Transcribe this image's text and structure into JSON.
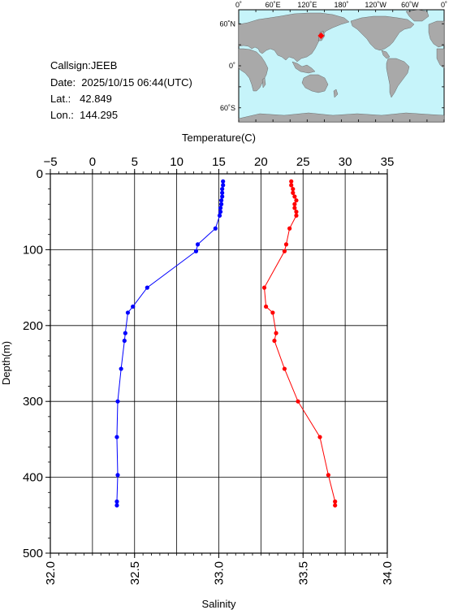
{
  "info": {
    "callsign": "Callsign:JEEB",
    "date": "Date:  2025/10/15 06:44(UTC)",
    "lat": "Lat.:   42.849",
    "lon": "Lon.:  144.295"
  },
  "map": {
    "lon_ticks": [
      "0˚",
      "60˚E",
      "120˚E",
      "180˚",
      "120˚W",
      "60˚W",
      "0˚"
    ],
    "lat_ticks": [
      "60˚N",
      "0˚",
      "60˚S"
    ],
    "station": {
      "lat": 42.849,
      "lon": 144.295,
      "color": "#ff0000"
    },
    "ocean_color": "#c6f4fa",
    "land_color": "#a9a9a9"
  },
  "chart_data": {
    "type": "line",
    "ylabel": "Depth(m)",
    "ylim": [
      0,
      500
    ],
    "y_ticks": [
      "0",
      "100",
      "200",
      "300",
      "400",
      "500"
    ],
    "y_reversed": true,
    "grid": true,
    "temperature_axis": {
      "label": "Temperature(C)",
      "range": [
        -5,
        35
      ],
      "ticks": [
        "−5",
        "0",
        "5",
        "10",
        "15",
        "20",
        "25",
        "30",
        "35"
      ],
      "position": "top"
    },
    "salinity_axis": {
      "label": "Salinity",
      "range": [
        32.0,
        34.0
      ],
      "ticks": [
        "32.0",
        "32.5",
        "33.0",
        "33.5",
        "34.0"
      ],
      "position": "bottom"
    },
    "series": [
      {
        "axis": "temperature",
        "color": "#0000ff",
        "points": [
          {
            "t": 15.5,
            "d": 10
          },
          {
            "t": 15.5,
            "d": 15
          },
          {
            "t": 15.4,
            "d": 20
          },
          {
            "t": 15.4,
            "d": 25
          },
          {
            "t": 15.4,
            "d": 30
          },
          {
            "t": 15.3,
            "d": 35
          },
          {
            "t": 15.3,
            "d": 40
          },
          {
            "t": 15.2,
            "d": 45
          },
          {
            "t": 15.2,
            "d": 50
          },
          {
            "t": 15.1,
            "d": 55
          },
          {
            "t": 14.6,
            "d": 72
          },
          {
            "t": 12.5,
            "d": 93
          },
          {
            "t": 12.3,
            "d": 102
          },
          {
            "t": 6.5,
            "d": 150
          },
          {
            "t": 4.8,
            "d": 175
          },
          {
            "t": 4.2,
            "d": 183
          },
          {
            "t": 3.9,
            "d": 210
          },
          {
            "t": 3.8,
            "d": 220
          },
          {
            "t": 3.4,
            "d": 257
          },
          {
            "t": 3.0,
            "d": 300
          },
          {
            "t": 2.9,
            "d": 347
          },
          {
            "t": 3.0,
            "d": 397
          },
          {
            "t": 2.9,
            "d": 432
          },
          {
            "t": 2.9,
            "d": 437
          }
        ]
      },
      {
        "axis": "salinity",
        "color": "#ff0000",
        "points": [
          {
            "s": 33.43,
            "d": 10
          },
          {
            "s": 33.43,
            "d": 15
          },
          {
            "s": 33.44,
            "d": 20
          },
          {
            "s": 33.44,
            "d": 25
          },
          {
            "s": 33.45,
            "d": 30
          },
          {
            "s": 33.46,
            "d": 35
          },
          {
            "s": 33.45,
            "d": 40
          },
          {
            "s": 33.45,
            "d": 45
          },
          {
            "s": 33.46,
            "d": 50
          },
          {
            "s": 33.46,
            "d": 55
          },
          {
            "s": 33.42,
            "d": 72
          },
          {
            "s": 33.4,
            "d": 93
          },
          {
            "s": 33.39,
            "d": 102
          },
          {
            "s": 33.27,
            "d": 150
          },
          {
            "s": 33.28,
            "d": 175
          },
          {
            "s": 33.32,
            "d": 183
          },
          {
            "s": 33.34,
            "d": 210
          },
          {
            "s": 33.33,
            "d": 220
          },
          {
            "s": 33.39,
            "d": 257
          },
          {
            "s": 33.47,
            "d": 300
          },
          {
            "s": 33.6,
            "d": 347
          },
          {
            "s": 33.65,
            "d": 397
          },
          {
            "s": 33.69,
            "d": 432
          },
          {
            "s": 33.69,
            "d": 437
          }
        ]
      }
    ]
  }
}
